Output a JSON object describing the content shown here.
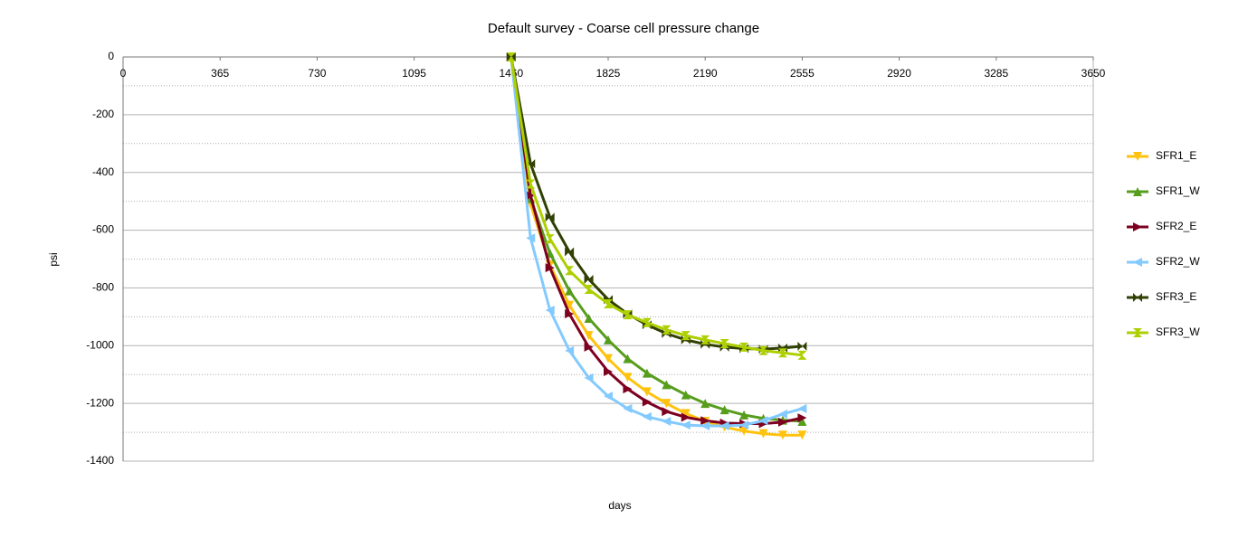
{
  "chart_data": {
    "type": "line",
    "title": "Default survey - Coarse cell pressure change",
    "xlabel": "days",
    "ylabel": "psi",
    "x": [
      1460,
      1533,
      1606,
      1679,
      1752,
      1825,
      1898,
      1971,
      2044,
      2117,
      2190,
      2263,
      2336,
      2409,
      2482,
      2555
    ],
    "xlim": [
      0,
      3650
    ],
    "xticks": [
      0,
      365,
      730,
      1095,
      1460,
      1825,
      2190,
      2555,
      2920,
      3285,
      3650
    ],
    "ylim": [
      -1400,
      0
    ],
    "yticks": [
      0,
      -200,
      -400,
      -600,
      -800,
      -1000,
      -1200,
      -1400
    ],
    "yminorticks": [
      -100,
      -300,
      -500,
      -700,
      -900,
      -1100,
      -1300
    ],
    "grid": true,
    "legend": "right",
    "series": [
      {
        "name": "SFR1_E",
        "color": "#ffc20e",
        "marker": "triangle-down",
        "values": [
          0,
          -510,
          -720,
          -860,
          -965,
          -1045,
          -1110,
          -1160,
          -1200,
          -1235,
          -1262,
          -1282,
          -1296,
          -1305,
          -1310,
          -1310
        ]
      },
      {
        "name": "SFR1_W",
        "color": "#579d1c",
        "marker": "triangle-up",
        "values": [
          0,
          -490,
          -680,
          -810,
          -905,
          -980,
          -1045,
          -1095,
          -1135,
          -1170,
          -1200,
          -1222,
          -1240,
          -1252,
          -1258,
          -1262
        ]
      },
      {
        "name": "SFR2_E",
        "color": "#7e0021",
        "marker": "triangle-right",
        "values": [
          0,
          -480,
          -730,
          -890,
          -1005,
          -1090,
          -1150,
          -1195,
          -1228,
          -1248,
          -1260,
          -1268,
          -1270,
          -1270,
          -1265,
          -1250
        ]
      },
      {
        "name": "SFR2_W",
        "color": "#83caff",
        "marker": "triangle-left",
        "values": [
          0,
          -627,
          -877,
          -1017,
          -1112,
          -1175,
          -1218,
          -1246,
          -1262,
          -1275,
          -1278,
          -1278,
          -1275,
          -1260,
          -1237,
          -1218
        ]
      },
      {
        "name": "SFR3_E",
        "color": "#314004",
        "marker": "bowtie",
        "values": [
          0,
          -370,
          -555,
          -675,
          -770,
          -840,
          -890,
          -928,
          -958,
          -980,
          -995,
          -1005,
          -1010,
          -1012,
          -1008,
          -1002
        ]
      },
      {
        "name": "SFR3_W",
        "color": "#aecf00",
        "marker": "hourglass",
        "values": [
          0,
          -440,
          -630,
          -740,
          -805,
          -855,
          -893,
          -920,
          -945,
          -965,
          -980,
          -993,
          -1005,
          -1017,
          -1025,
          -1033
        ]
      }
    ]
  }
}
